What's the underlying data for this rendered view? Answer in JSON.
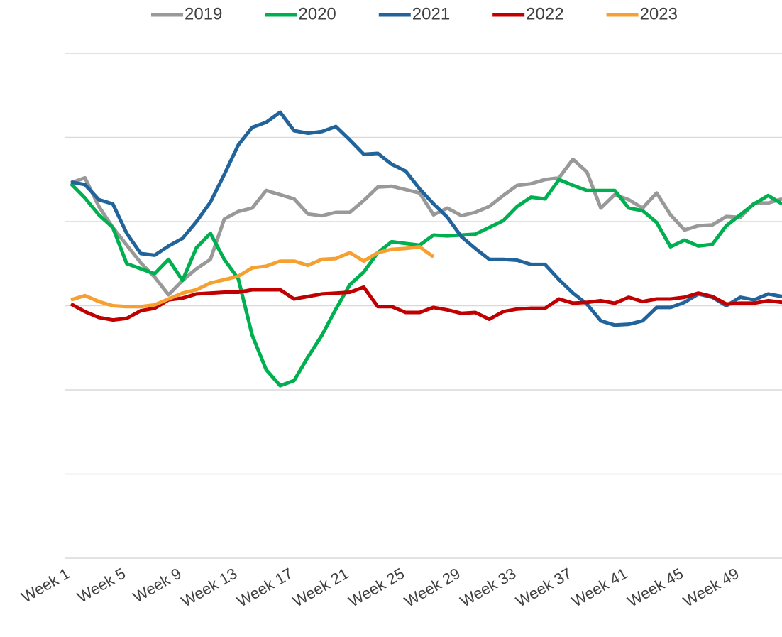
{
  "chart_data": {
    "type": "line",
    "categories": [
      "Week 1",
      null,
      null,
      null,
      "Week 5",
      null,
      null,
      null,
      "Week 9",
      null,
      null,
      null,
      "Week 13",
      null,
      null,
      null,
      "Week 17",
      null,
      null,
      null,
      "Week 21",
      null,
      null,
      null,
      "Week 25",
      null,
      null,
      null,
      "Week 29",
      null,
      null,
      null,
      "Week 33",
      null,
      null,
      null,
      "Week 37",
      null,
      null,
      null,
      "Week 41",
      null,
      null,
      null,
      "Week 45",
      null,
      null,
      null,
      "Week 49",
      null,
      null,
      null
    ],
    "series": [
      {
        "name": "2019",
        "color": "#999999",
        "values": [
          14.6,
          15.2,
          11.8,
          9.3,
          7.2,
          5.1,
          3.4,
          1.3,
          3.0,
          4.4,
          5.5,
          10.3,
          11.2,
          11.6,
          13.7,
          13.2,
          12.7,
          10.9,
          10.7,
          11.1,
          11.1,
          12.5,
          14.1,
          14.2,
          13.8,
          13.4,
          10.8,
          11.6,
          10.7,
          11.1,
          11.8,
          13.1,
          14.3,
          14.5,
          15.0,
          15.2,
          17.4,
          15.9,
          11.6,
          13.2,
          12.6,
          11.6,
          13.4,
          10.8,
          9.0,
          9.5,
          9.6,
          10.6,
          10.5,
          12.2,
          12.2,
          12.7
        ]
      },
      {
        "name": "2020",
        "color": "#00b050",
        "values": [
          14.5,
          12.8,
          10.8,
          9.3,
          5.0,
          4.4,
          3.8,
          5.5,
          3.0,
          6.9,
          8.6,
          5.5,
          3.2,
          -3.5,
          -7.6,
          -9.5,
          -8.9,
          -6.1,
          -3.5,
          -0.4,
          2.5,
          4.0,
          6.3,
          7.6,
          7.4,
          7.2,
          8.4,
          8.3,
          8.4,
          8.5,
          9.3,
          10.1,
          11.8,
          12.9,
          12.7,
          15.0,
          14.3,
          13.7,
          13.7,
          13.7,
          11.6,
          11.3,
          9.9,
          7.0,
          7.8,
          7.1,
          7.3,
          9.5,
          10.8,
          12.1,
          13.1,
          12.1
        ]
      },
      {
        "name": "2021",
        "color": "#21639b",
        "values": [
          14.7,
          14.4,
          12.6,
          12.1,
          8.6,
          6.2,
          6.0,
          7.1,
          8.0,
          10.0,
          12.3,
          15.6,
          19.1,
          21.2,
          21.8,
          23.0,
          20.8,
          20.5,
          20.7,
          21.3,
          19.7,
          18.0,
          18.1,
          16.8,
          16.0,
          13.9,
          12.1,
          10.5,
          8.2,
          6.8,
          5.5,
          5.5,
          5.4,
          4.9,
          4.9,
          3.1,
          1.5,
          0.2,
          -1.8,
          -2.3,
          -2.2,
          -1.8,
          -0.2,
          -0.2,
          0.4,
          1.4,
          1.0,
          0.0,
          1.0,
          0.7,
          1.4,
          1.1
        ]
      },
      {
        "name": "2022",
        "color": "#c00000",
        "values": [
          0.2,
          -0.7,
          -1.4,
          -1.7,
          -1.5,
          -0.6,
          -0.3,
          0.7,
          0.9,
          1.4,
          1.5,
          1.6,
          1.6,
          1.9,
          1.9,
          1.9,
          0.8,
          1.1,
          1.4,
          1.5,
          1.6,
          2.2,
          -0.1,
          -0.1,
          -0.8,
          -0.8,
          -0.2,
          -0.5,
          -0.9,
          -0.8,
          -1.6,
          -0.7,
          -0.4,
          -0.3,
          -0.3,
          0.8,
          0.3,
          0.4,
          0.6,
          0.3,
          1.0,
          0.5,
          0.8,
          0.8,
          1.0,
          1.5,
          1.1,
          0.2,
          0.3,
          0.3,
          0.6,
          0.4
        ]
      },
      {
        "name": "2023",
        "color": "#f5a030",
        "values": [
          0.7,
          1.2,
          0.5,
          0,
          -0.1,
          -0.1,
          0.1,
          0.8,
          1.5,
          1.9,
          2.7,
          3.1,
          3.5,
          4.5,
          4.7,
          5.3,
          5.3,
          4.8,
          5.5,
          5.6,
          6.3,
          5.3,
          6.3,
          6.7,
          6.8,
          7.0,
          5.8,
          null,
          null,
          null,
          null,
          null,
          null,
          null,
          null,
          null,
          null,
          null,
          null,
          null,
          null,
          null,
          null,
          null,
          null,
          null,
          null,
          null,
          null,
          null,
          null,
          null
        ]
      }
    ],
    "ylim": [
      -30,
      30
    ],
    "yticks": [
      -30,
      -20,
      -10,
      0,
      10,
      20,
      30
    ],
    "grid": true
  }
}
